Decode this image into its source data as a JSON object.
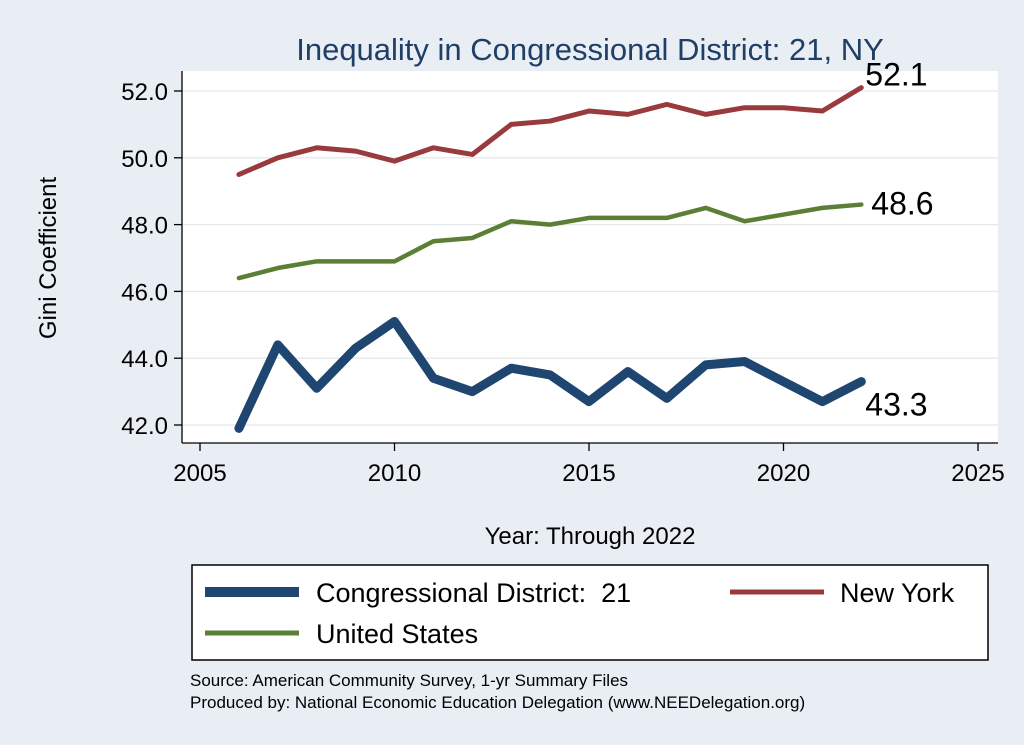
{
  "chart_data": {
    "type": "line",
    "title": "Inequality in Congressional District:  21, NY",
    "xlabel": "Year: Through 2022",
    "ylabel": "Gini Coefficient",
    "xlim": [
      2005,
      2025
    ],
    "ylim": [
      41.8,
      52.5
    ],
    "xticks": [
      2005,
      2010,
      2015,
      2020,
      2025
    ],
    "yticks": [
      42.0,
      44.0,
      46.0,
      48.0,
      50.0,
      52.0
    ],
    "grid": true,
    "legend_position": "bottom",
    "series": [
      {
        "name": "Congressional District:  21",
        "color": "#1f4670",
        "x": [
          2006,
          2007,
          2008,
          2009,
          2010,
          2011,
          2012,
          2013,
          2014,
          2015,
          2016,
          2017,
          2018,
          2019,
          2020,
          2021,
          2022
        ],
        "y": [
          41.9,
          44.4,
          43.1,
          44.3,
          45.1,
          43.4,
          43.0,
          43.7,
          43.5,
          42.7,
          43.6,
          42.8,
          43.8,
          43.9,
          43.3,
          42.7,
          43.3
        ],
        "end_label": "43.3"
      },
      {
        "name": "New York",
        "color": "#993a3c",
        "x": [
          2006,
          2007,
          2008,
          2009,
          2010,
          2011,
          2012,
          2013,
          2014,
          2015,
          2016,
          2017,
          2018,
          2019,
          2020,
          2021,
          2022
        ],
        "y": [
          49.5,
          50.0,
          50.3,
          50.2,
          49.9,
          50.3,
          50.1,
          51.0,
          51.1,
          51.4,
          51.3,
          51.6,
          51.3,
          51.5,
          51.5,
          51.4,
          52.1
        ],
        "end_label": "52.1"
      },
      {
        "name": "United States",
        "color": "#5b7f35",
        "x": [
          2006,
          2007,
          2008,
          2009,
          2010,
          2011,
          2012,
          2013,
          2014,
          2015,
          2016,
          2017,
          2018,
          2019,
          2020,
          2021,
          2022
        ],
        "y": [
          46.4,
          46.7,
          46.9,
          46.9,
          46.9,
          47.5,
          47.6,
          48.1,
          48.0,
          48.2,
          48.2,
          48.2,
          48.5,
          48.1,
          48.3,
          48.5,
          48.6
        ],
        "end_label": "48.6"
      }
    ]
  },
  "notes": {
    "source": "Source: American Community Survey, 1-yr Summary Files",
    "produced_by": "Produced by: National Economic Education Delegation (www.NEEDelegation.org)"
  }
}
